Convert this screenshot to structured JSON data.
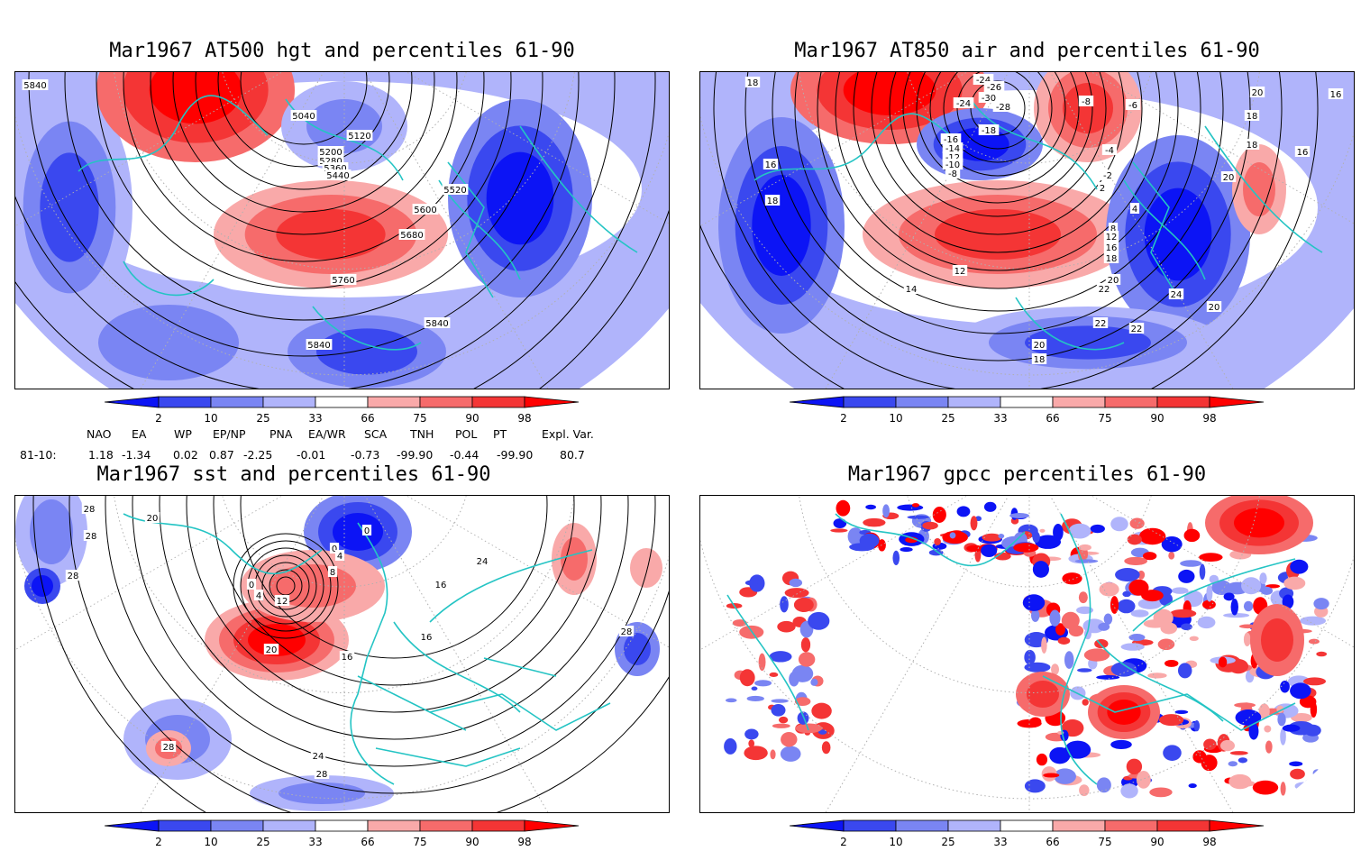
{
  "colors": {
    "land_outline": "#24c4c4",
    "contour": "#000000",
    "grid": "#b0b0b0",
    "b1": "#0c14f5",
    "b2": "#3a48ef",
    "b3": "#7a85f3",
    "b4": "#b0b4fb",
    "r1": "#f9a9a9",
    "r2": "#f66b6b",
    "r3": "#f43535",
    "r4": "#ff0000"
  },
  "colorbar": {
    "ticks": [
      "2",
      "10",
      "25",
      "33",
      "66",
      "75",
      "90",
      "98"
    ]
  },
  "panels": [
    {
      "id": "hgt500",
      "title": "Mar1967 AT500 hgt and percentiles 61-90",
      "contour_labels": [
        "5840",
        "5040",
        "5120",
        "5200",
        "5280",
        "5360",
        "5440",
        "5520",
        "5600",
        "5680",
        "5760",
        "5840",
        "5840"
      ]
    },
    {
      "id": "air850",
      "title": "Mar1967 AT850 air and percentiles 61-90",
      "contour_labels": [
        "18",
        "-24",
        "-26",
        "-30",
        "-24",
        "-28",
        "-18",
        "-8",
        "-6",
        "20",
        "16",
        "18",
        "-16",
        "-14",
        "-12",
        "-10",
        "-8",
        "-4",
        "-2",
        "2",
        "18",
        "16",
        "16",
        "18",
        "20",
        "4",
        "8",
        "12",
        "16",
        "18",
        "20",
        "12",
        "14",
        "22",
        "24",
        "22",
        "22",
        "20",
        "20",
        "18"
      ]
    },
    {
      "id": "sst",
      "title": "Mar1967 sst and percentiles 61-90",
      "contour_labels": [
        "28",
        "20",
        "28",
        "28",
        "0",
        "0",
        "4",
        "8",
        "12",
        "4",
        "0",
        "20",
        "16",
        "16",
        "24",
        "16",
        "28",
        "28",
        "24",
        "28"
      ]
    },
    {
      "id": "gpcc",
      "title": "Mar1967 gpcc percentiles 61-90",
      "contour_labels": []
    }
  ],
  "teleconnections": {
    "headers": [
      "NAO",
      "EA",
      "WP",
      "EP/NP",
      "PNA",
      "EA/WR",
      "SCA",
      "TNH",
      "POL",
      "PT",
      "Expl. Var."
    ],
    "row_label": "81-10:",
    "values": [
      "1.18",
      "-1.34",
      "0.02",
      "0.87",
      "-2.25",
      "-0.01",
      "-0.73",
      "-99.90",
      "-0.44",
      "-99.90",
      "80.7"
    ]
  }
}
